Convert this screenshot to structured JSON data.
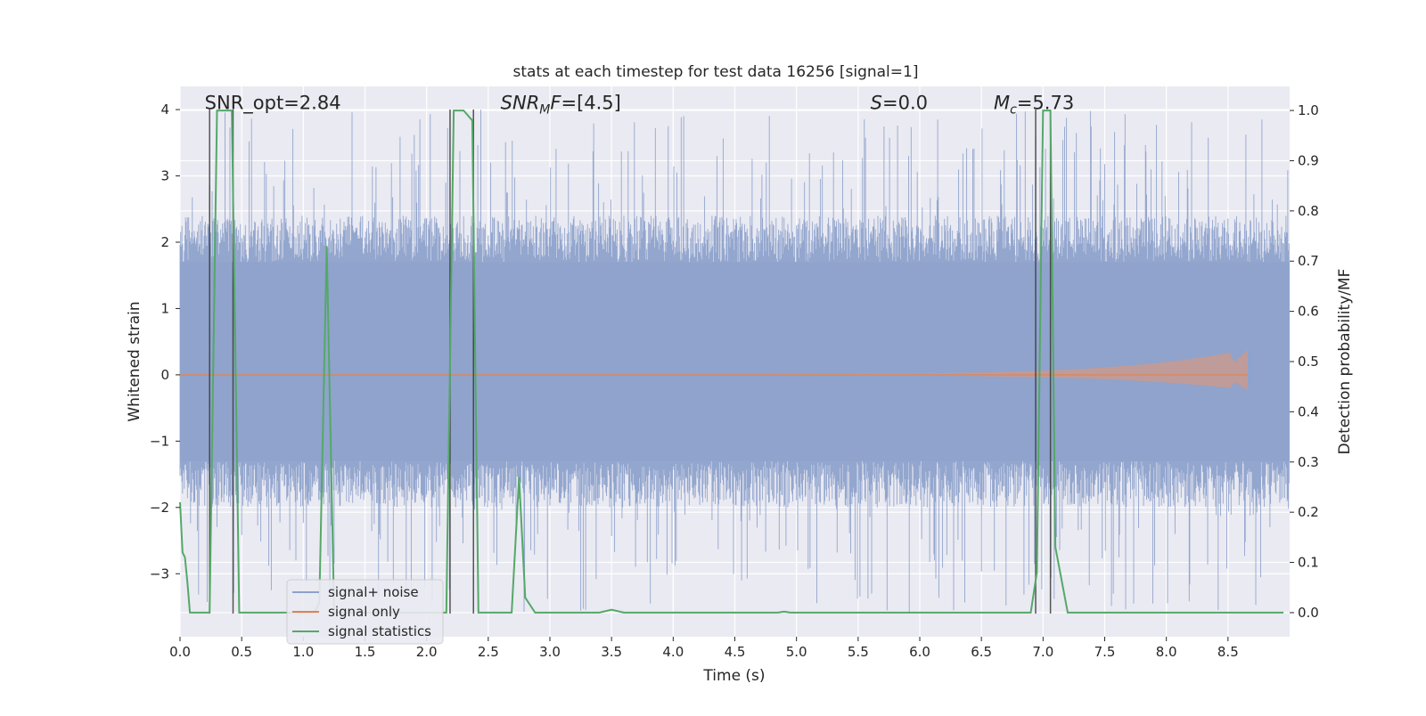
{
  "chart_data": {
    "type": "line",
    "title": "stats at each timestep for test data 16256 [signal=1]",
    "xlabel": "Time (s)",
    "ylabel_left": "Whitened strain",
    "ylabel_right": "Detection probability/MF",
    "xlim": [
      0,
      9.0
    ],
    "ylim_left": [
      -3.95,
      4.35
    ],
    "ylim_right": [
      -0.048,
      1.048
    ],
    "x_ticks": [
      "0.0",
      "0.5",
      "1.0",
      "1.5",
      "2.0",
      "2.5",
      "3.0",
      "3.5",
      "4.0",
      "4.5",
      "5.0",
      "5.5",
      "6.0",
      "6.5",
      "7.0",
      "7.5",
      "8.0",
      "8.5"
    ],
    "y_ticks_left": [
      "−3",
      "−2",
      "−1",
      "0",
      "1",
      "2",
      "3",
      "4"
    ],
    "y_ticks_right": [
      "0.0",
      "0.1",
      "0.2",
      "0.3",
      "0.4",
      "0.5",
      "0.6",
      "0.7",
      "0.8",
      "0.9",
      "1.0"
    ],
    "grid": true,
    "legend_position": "lower-left",
    "colors": {
      "background": "#eaeaf2",
      "grid": "#ffffff",
      "noise": "#8ea2cb",
      "signal_only": "#dd8452",
      "statistics": "#55a868",
      "vlines": "#3a3a3a"
    },
    "annotations": [
      {
        "text": "SNR_opt=2.84",
        "x": 0.2,
        "y": 4.05
      },
      {
        "symbol": "SNR",
        "sub": "M",
        "rest": "F=[4.5]",
        "x": 2.6,
        "y": 4.05
      },
      {
        "symbol": "S",
        "rest": "=0.0",
        "x": 5.6,
        "y": 4.05
      },
      {
        "symbol": "M",
        "sub": "c",
        "rest": "=5.73",
        "x": 6.6,
        "y": 4.05
      }
    ],
    "series": [
      {
        "name": "signal+ noise",
        "kind": "noise_envelope",
        "typical_range": [
          -1.3,
          1.7
        ],
        "peak_range": [
          -3.6,
          4.0
        ]
      },
      {
        "name": "signal only",
        "kind": "chirp",
        "x_end": 8.66,
        "peak_amplitude": 0.38
      },
      {
        "name": "signal statistics",
        "axis": "right",
        "points": [
          [
            0.0,
            0.22
          ],
          [
            0.02,
            0.12
          ],
          [
            0.04,
            0.11
          ],
          [
            0.06,
            0.06
          ],
          [
            0.08,
            0.0
          ],
          [
            0.24,
            0.0
          ],
          [
            0.3,
            1.0
          ],
          [
            0.42,
            1.0
          ],
          [
            0.48,
            0.0
          ],
          [
            1.09,
            0.0
          ],
          [
            1.13,
            0.02
          ],
          [
            1.19,
            0.73
          ],
          [
            1.25,
            0.0
          ],
          [
            2.16,
            0.0
          ],
          [
            2.22,
            1.0
          ],
          [
            2.3,
            1.0
          ],
          [
            2.37,
            0.98
          ],
          [
            2.42,
            0.0
          ],
          [
            2.69,
            0.0
          ],
          [
            2.75,
            0.27
          ],
          [
            2.8,
            0.03
          ],
          [
            2.88,
            0.0
          ],
          [
            3.4,
            0.0
          ],
          [
            3.5,
            0.006
          ],
          [
            3.6,
            0.0
          ],
          [
            4.85,
            0.0
          ],
          [
            4.9,
            0.002
          ],
          [
            4.95,
            0.0
          ],
          [
            6.9,
            0.0
          ],
          [
            6.95,
            0.08
          ],
          [
            7.0,
            1.0
          ],
          [
            7.06,
            1.0
          ],
          [
            7.1,
            0.13
          ],
          [
            7.2,
            0.0
          ],
          [
            8.95,
            0.0
          ]
        ]
      }
    ],
    "vertical_lines": [
      0.24,
      0.43,
      2.19,
      2.38,
      6.94,
      7.06
    ]
  }
}
